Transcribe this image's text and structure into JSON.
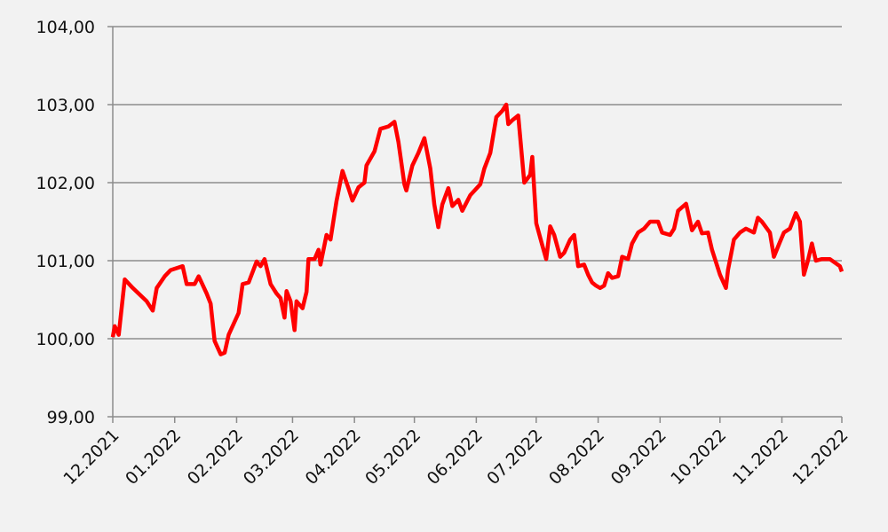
{
  "chart_data": {
    "type": "line",
    "x": [
      0,
      1,
      3,
      6,
      10,
      17,
      20,
      22,
      26,
      29,
      35,
      37,
      41,
      43,
      47,
      49,
      51,
      54,
      56,
      58,
      63,
      65,
      68,
      72,
      74,
      76,
      79,
      82,
      84,
      86,
      87,
      89,
      91,
      92,
      95,
      97,
      98,
      101,
      103,
      104,
      107,
      109,
      112,
      115,
      118,
      120,
      123,
      126,
      127,
      131,
      134,
      138,
      141,
      143,
      146,
      147,
      150,
      153,
      156,
      159,
      161,
      163,
      165,
      168,
      170,
      173,
      175,
      179,
      184,
      186,
      189,
      192,
      195,
      197,
      198,
      200,
      203,
      206,
      209,
      210,
      212,
      215,
      217,
      219,
      221,
      224,
      226,
      229,
      231,
      233,
      236,
      238,
      240,
      242,
      244,
      246,
      248,
      250,
      253,
      255,
      258,
      260,
      263,
      266,
      269,
      273,
      275,
      279,
      281,
      283,
      287,
      290,
      293,
      295,
      298,
      300,
      304,
      307,
      308,
      311,
      314,
      317,
      321,
      323,
      325,
      329,
      331,
      334,
      336,
      339,
      342,
      344,
      346,
      348,
      350,
      352,
      355,
      359,
      364,
      365
    ],
    "series": [
      {
        "color": "#ff0000",
        "values": [
          100.02,
          100.16,
          100.05,
          100.76,
          100.65,
          100.48,
          100.36,
          100.65,
          100.8,
          100.88,
          100.93,
          100.7,
          100.7,
          100.8,
          100.58,
          100.45,
          99.97,
          99.8,
          99.82,
          100.05,
          100.33,
          100.7,
          100.72,
          100.99,
          100.93,
          101.02,
          100.7,
          100.58,
          100.52,
          100.27,
          100.61,
          100.48,
          100.11,
          100.48,
          100.39,
          100.6,
          101.02,
          101.02,
          101.14,
          100.95,
          101.33,
          101.27,
          101.76,
          102.15,
          101.93,
          101.77,
          101.94,
          102.0,
          102.22,
          102.4,
          102.69,
          102.72,
          102.78,
          102.52,
          101.98,
          101.9,
          102.22,
          102.38,
          102.57,
          102.18,
          101.72,
          101.43,
          101.72,
          101.93,
          101.7,
          101.78,
          101.64,
          101.84,
          101.98,
          102.18,
          102.38,
          102.84,
          102.92,
          103.0,
          102.75,
          102.8,
          102.86,
          102.0,
          102.1,
          102.33,
          101.48,
          101.2,
          101.02,
          101.44,
          101.33,
          101.05,
          101.1,
          101.27,
          101.33,
          100.93,
          100.95,
          100.82,
          100.72,
          100.68,
          100.65,
          100.68,
          100.84,
          100.78,
          100.8,
          101.05,
          101.02,
          101.22,
          101.36,
          101.41,
          101.5,
          101.5,
          101.36,
          101.33,
          101.41,
          101.64,
          101.73,
          101.39,
          101.5,
          101.35,
          101.36,
          101.14,
          100.82,
          100.65,
          100.88,
          101.27,
          101.36,
          101.41,
          101.36,
          101.55,
          101.5,
          101.36,
          101.05,
          101.24,
          101.36,
          101.41,
          101.61,
          101.5,
          100.82,
          101.0,
          101.22,
          101.0,
          101.02,
          101.02,
          100.93,
          100.86
        ]
      }
    ],
    "xlim": [
      0,
      365
    ],
    "xticks": [
      {
        "value": 0,
        "label": "12.2021"
      },
      {
        "value": 31,
        "label": "01.2022"
      },
      {
        "value": 62,
        "label": "02.2022"
      },
      {
        "value": 90,
        "label": "03.2022"
      },
      {
        "value": 121,
        "label": "04.2022"
      },
      {
        "value": 151,
        "label": "05.2022"
      },
      {
        "value": 182,
        "label": "06.2022"
      },
      {
        "value": 212,
        "label": "07.2022"
      },
      {
        "value": 243,
        "label": "08.2022"
      },
      {
        "value": 274,
        "label": "09.2022"
      },
      {
        "value": 304,
        "label": "10.2022"
      },
      {
        "value": 335,
        "label": "11.2022"
      },
      {
        "value": 365,
        "label": "12.2022"
      }
    ],
    "ylim": [
      99,
      104
    ],
    "yticks": [
      {
        "value": 99,
        "label": "99,00"
      },
      {
        "value": 100,
        "label": "100,00"
      },
      {
        "value": 101,
        "label": "101,00"
      },
      {
        "value": 102,
        "label": "102,00"
      },
      {
        "value": 103,
        "label": "103,00"
      },
      {
        "value": 104,
        "label": "104,00"
      }
    ],
    "grid": true
  }
}
